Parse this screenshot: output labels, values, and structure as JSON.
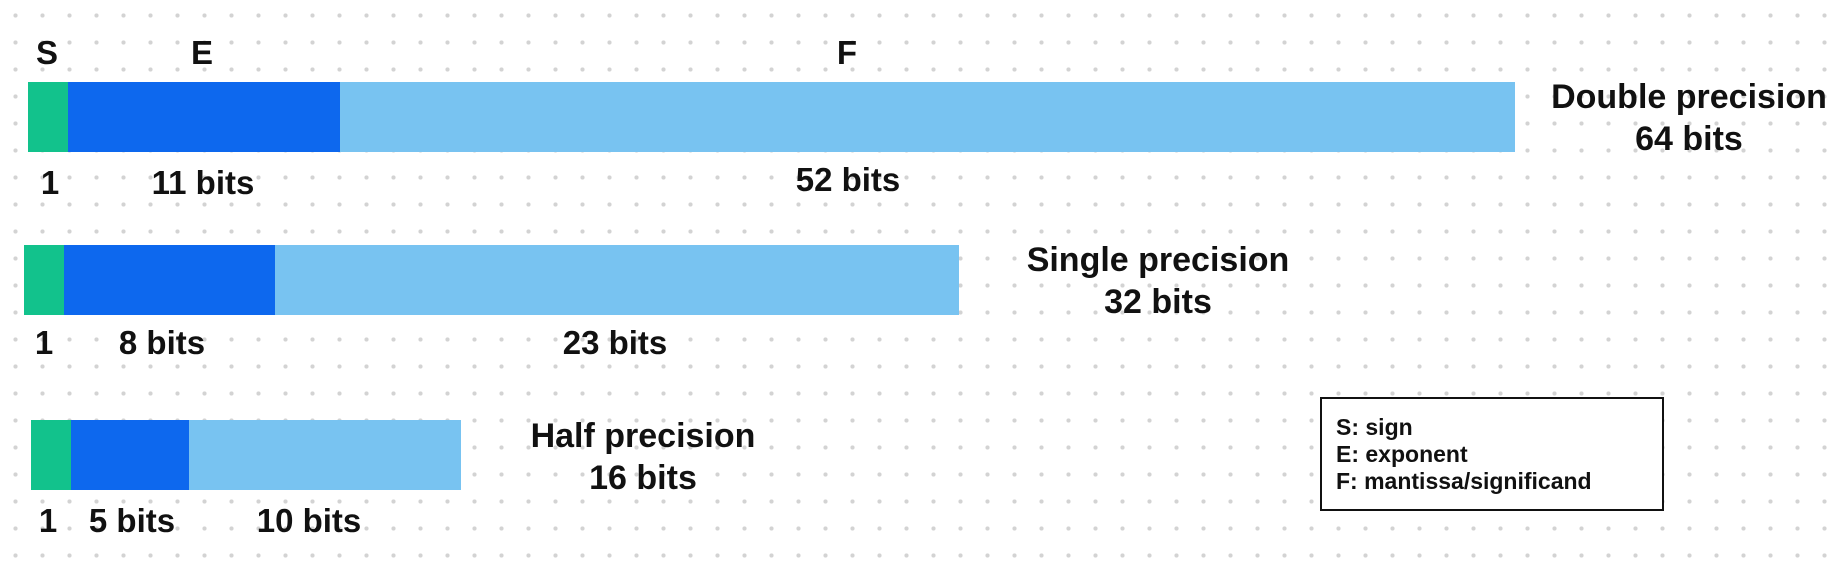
{
  "field_headers": {
    "sign": "S",
    "exponent": "E",
    "mantissa": "F"
  },
  "formats": [
    {
      "id": "double",
      "title": "Double precision",
      "subtitle": "64 bits",
      "bits": {
        "sign": 1,
        "exponent": 11,
        "mantissa": 52
      },
      "labels": {
        "sign": "1",
        "exponent": "11 bits",
        "mantissa": "52 bits"
      }
    },
    {
      "id": "single",
      "title": "Single precision",
      "subtitle": "32 bits",
      "bits": {
        "sign": 1,
        "exponent": 8,
        "mantissa": 23
      },
      "labels": {
        "sign": "1",
        "exponent": "8 bits",
        "mantissa": "23 bits"
      }
    },
    {
      "id": "half",
      "title": "Half precision",
      "subtitle": "16 bits",
      "bits": {
        "sign": 1,
        "exponent": 5,
        "mantissa": 10
      },
      "labels": {
        "sign": "1",
        "exponent": "5 bits",
        "mantissa": "10 bits"
      }
    }
  ],
  "legend": {
    "sign": "S: sign",
    "exponent": "E: exponent",
    "mantissa": "F: mantissa/significand"
  },
  "colors": {
    "sign": "#12c28c",
    "exponent": "#0d68ee",
    "mantissa": "#78c3f1"
  }
}
